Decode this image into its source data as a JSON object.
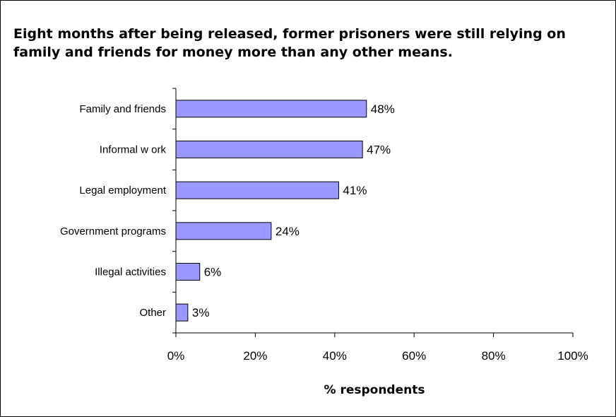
{
  "chart_data": {
    "type": "bar",
    "orientation": "horizontal",
    "title": "Eight months after being released, former prisoners were still relying on family and friends for money more than any other means.",
    "xlabel": "% respondents",
    "ylabel": "",
    "categories": [
      "Family and friends",
      "Informal w ork",
      "Legal employment",
      "Government programs",
      "Illegal activities",
      "Other"
    ],
    "values": [
      48,
      47,
      41,
      24,
      6,
      3
    ],
    "data_labels": [
      "48%",
      "47%",
      "41%",
      "24%",
      "6%",
      "3%"
    ],
    "xlim": [
      0,
      100
    ],
    "x_ticks": [
      0,
      20,
      40,
      60,
      80,
      100
    ],
    "x_tick_labels": [
      "0%",
      "20%",
      "40%",
      "60%",
      "80%",
      "100%"
    ],
    "grid": false,
    "legend": "none",
    "colors": {
      "bar_fill": "#9999ff",
      "bar_stroke": "#000000",
      "axis": "#000000",
      "border": "#000000"
    }
  }
}
